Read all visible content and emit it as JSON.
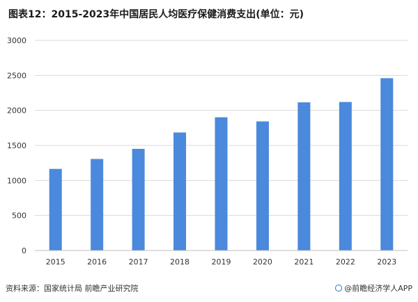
{
  "title": "图表12：2015-2023年中国居民人均医疗保健消费支出(单位：元)",
  "footer": {
    "source": "资料来源：国家统计局 前瞻产业研究院",
    "brand": "@前瞻经济学人APP"
  },
  "colors": {
    "bar": "#4a89dc",
    "grid": "#d9d9d9",
    "axis": "#bfbfbf"
  },
  "chart_data": {
    "type": "bar",
    "title": "",
    "xlabel": "",
    "ylabel": "",
    "categories": [
      "2015",
      "2016",
      "2017",
      "2018",
      "2019",
      "2020",
      "2021",
      "2022",
      "2023"
    ],
    "values": [
      1165,
      1307,
      1451,
      1685,
      1902,
      1843,
      2115,
      2120,
      2460
    ],
    "ylim": [
      0,
      3000
    ],
    "yticks": [
      0,
      500,
      1000,
      1500,
      2000,
      2500,
      3000
    ],
    "grid": true,
    "legend": "none"
  }
}
